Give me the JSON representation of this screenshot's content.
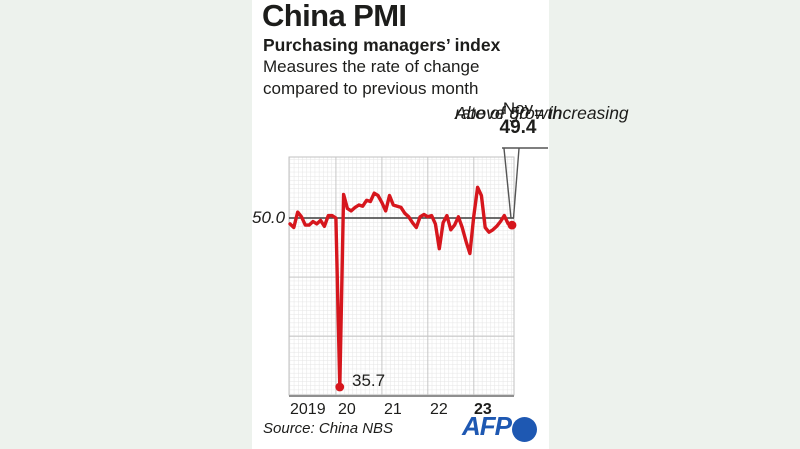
{
  "header": {
    "title": "China PMI",
    "subtitle": "Purchasing managers’ index",
    "description": [
      "Measures the rate of change",
      "compared to previous month"
    ]
  },
  "annotation": {
    "line1": "Above 50 = increasing",
    "line2": "rate of growth"
  },
  "callout": {
    "month": "Nov",
    "value": "49.4"
  },
  "baseline_label": "50.0",
  "low_point_label": "35.7",
  "footer": {
    "source": "Source: China NBS",
    "logo": "AFP"
  },
  "colors": {
    "background": "#edf2ed",
    "panel": "#ffffff",
    "line_red": "#d6161d",
    "baseline_dark": "#3c3c3c",
    "callout_gray": "#555555",
    "logo_blue": "#1e58b2"
  },
  "chart_data": {
    "type": "line",
    "title": "China PMI",
    "x_start": "2019-01",
    "x_end": "2023-11",
    "x_tick_labels": [
      "2019",
      "20",
      "21",
      "22",
      "23"
    ],
    "baseline": 50.0,
    "ylim": [
      35,
      55.2
    ],
    "grid": "fine graph-paper minor grid, yearly vertical and 5-unit horizontal major gridlines",
    "legend_position": "none",
    "series": [
      {
        "name": "China official manufacturing PMI (NBS), monthly",
        "values": [
          49.5,
          49.2,
          50.5,
          50.1,
          49.4,
          49.4,
          49.7,
          49.5,
          49.8,
          49.3,
          50.2,
          50.2,
          50.0,
          35.7,
          52.0,
          50.8,
          50.6,
          50.9,
          51.1,
          51.0,
          51.5,
          51.4,
          52.1,
          51.9,
          51.3,
          50.6,
          51.9,
          51.1,
          51.0,
          50.9,
          50.4,
          50.1,
          49.6,
          49.2,
          50.1,
          50.3,
          50.1,
          50.2,
          49.5,
          47.4,
          49.6,
          50.2,
          49.0,
          49.4,
          50.1,
          49.2,
          48.0,
          47.0,
          50.1,
          52.6,
          51.9,
          49.2,
          48.8,
          49.0,
          49.3,
          49.7,
          50.2,
          49.5,
          49.4
        ]
      }
    ],
    "annotations": [
      {
        "x": "2020-02",
        "value": 35.7,
        "label": "35.7"
      },
      {
        "x": "2023-11",
        "value": 49.4,
        "label": "Nov 49.4"
      }
    ]
  }
}
